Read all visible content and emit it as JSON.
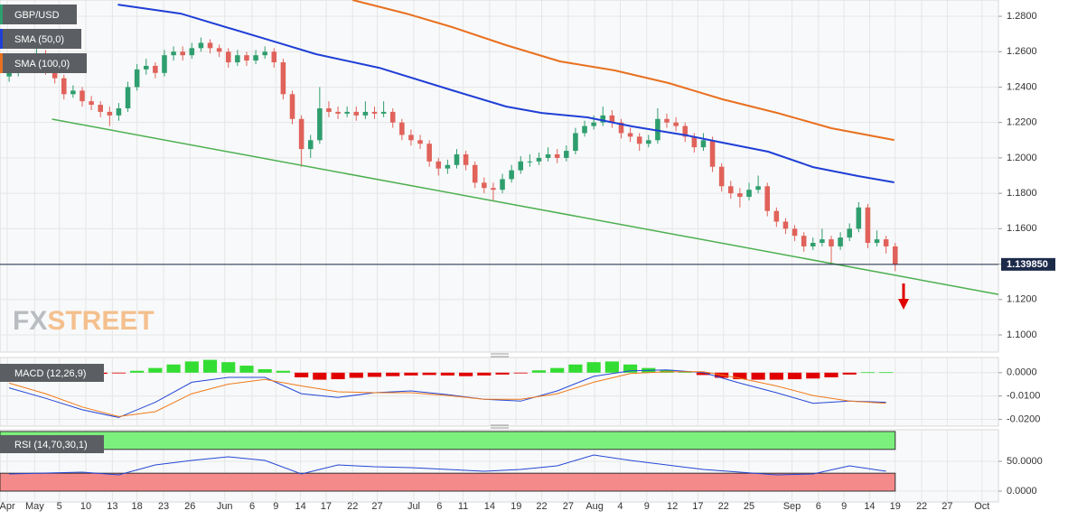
{
  "chart_data": {
    "type": "candlestick",
    "symbol": "GBP/USD",
    "watermark": [
      "FX",
      "STREET"
    ],
    "up_color": "#2f9e6e",
    "down_color": "#e0625a",
    "xlim": [
      -1,
      108.3
    ],
    "xticks": [
      {
        "value": -0.2,
        "label": "Apr"
      },
      {
        "value": 2.8,
        "label": "May"
      },
      {
        "value": 5.5,
        "label": "5"
      },
      {
        "value": 8.4,
        "label": "10"
      },
      {
        "value": 11.3,
        "label": "13"
      },
      {
        "value": 14.0,
        "label": "18"
      },
      {
        "value": 16.9,
        "label": "23"
      },
      {
        "value": 19.8,
        "label": "26"
      },
      {
        "value": 23.6,
        "label": "Jun"
      },
      {
        "value": 26.6,
        "label": "6"
      },
      {
        "value": 29.2,
        "label": "9"
      },
      {
        "value": 31.9,
        "label": "14"
      },
      {
        "value": 34.7,
        "label": "17"
      },
      {
        "value": 37.6,
        "label": "22"
      },
      {
        "value": 40.3,
        "label": "27"
      },
      {
        "value": 44.3,
        "label": "Jul"
      },
      {
        "value": 47.1,
        "label": "6"
      },
      {
        "value": 49.7,
        "label": "11"
      },
      {
        "value": 52.6,
        "label": "14"
      },
      {
        "value": 55.5,
        "label": "19"
      },
      {
        "value": 58.3,
        "label": "22"
      },
      {
        "value": 61.2,
        "label": "27"
      },
      {
        "value": 64.1,
        "label": "Aug"
      },
      {
        "value": 66.9,
        "label": "4"
      },
      {
        "value": 69.8,
        "label": "9"
      },
      {
        "value": 72.6,
        "label": "12"
      },
      {
        "value": 75.4,
        "label": "17"
      },
      {
        "value": 78.2,
        "label": "22"
      },
      {
        "value": 81.0,
        "label": "25"
      },
      {
        "value": 85.7,
        "label": "Sep"
      },
      {
        "value": 88.6,
        "label": "6"
      },
      {
        "value": 91.4,
        "label": "9"
      },
      {
        "value": 94.2,
        "label": "14"
      },
      {
        "value": 97.0,
        "label": "19"
      },
      {
        "value": 99.9,
        "label": "22"
      },
      {
        "value": 102.7,
        "label": "27"
      },
      {
        "value": 106.5,
        "label": "Oct"
      }
    ],
    "ylim": [
      1.0903,
      1.2892
    ],
    "yticks": [
      {
        "value": 1.28,
        "label": "1.2800"
      },
      {
        "value": 1.26,
        "label": "1.2600"
      },
      {
        "value": 1.24,
        "label": "1.2400"
      },
      {
        "value": 1.22,
        "label": "1.2200"
      },
      {
        "value": 1.2,
        "label": "1.2000"
      },
      {
        "value": 1.18,
        "label": "1.1800"
      },
      {
        "value": 1.16,
        "label": "1.1600"
      },
      {
        "value": 1.14,
        "label": "1.1400"
      },
      {
        "value": 1.12,
        "label": "1.1200"
      },
      {
        "value": 1.1,
        "label": "1.1000"
      }
    ],
    "grid": true,
    "candles": [
      [
        1.246,
        1.251,
        1.243,
        1.248
      ],
      [
        1.248,
        1.255,
        1.246,
        1.252
      ],
      [
        1.252,
        1.258,
        1.25,
        1.255
      ],
      [
        1.255,
        1.262,
        1.253,
        1.258
      ],
      [
        1.258,
        1.261,
        1.247,
        1.25
      ],
      [
        1.25,
        1.253,
        1.242,
        1.245
      ],
      [
        1.245,
        1.247,
        1.233,
        1.236
      ],
      [
        1.236,
        1.241,
        1.234,
        1.238
      ],
      [
        1.238,
        1.24,
        1.229,
        1.232
      ],
      [
        1.232,
        1.235,
        1.227,
        1.23
      ],
      [
        1.23,
        1.232,
        1.223,
        1.226
      ],
      [
        1.226,
        1.229,
        1.218,
        1.224
      ],
      [
        1.224,
        1.231,
        1.221,
        1.228
      ],
      [
        1.228,
        1.243,
        1.226,
        1.24
      ],
      [
        1.24,
        1.253,
        1.238,
        1.25
      ],
      [
        1.25,
        1.256,
        1.247,
        1.252
      ],
      [
        1.252,
        1.254,
        1.245,
        1.248
      ],
      [
        1.248,
        1.261,
        1.246,
        1.258
      ],
      [
        1.258,
        1.263,
        1.255,
        1.26
      ],
      [
        1.26,
        1.263,
        1.255,
        1.258
      ],
      [
        1.258,
        1.265,
        1.256,
        1.262
      ],
      [
        1.262,
        1.268,
        1.26,
        1.265
      ],
      [
        1.265,
        1.267,
        1.259,
        1.262
      ],
      [
        1.262,
        1.264,
        1.257,
        1.26
      ],
      [
        1.26,
        1.262,
        1.251,
        1.254
      ],
      [
        1.254,
        1.261,
        1.252,
        1.258
      ],
      [
        1.258,
        1.26,
        1.252,
        1.255
      ],
      [
        1.255,
        1.261,
        1.253,
        1.258
      ],
      [
        1.258,
        1.263,
        1.256,
        1.26
      ],
      [
        1.26,
        1.262,
        1.251,
        1.254
      ],
      [
        1.254,
        1.256,
        1.233,
        1.236
      ],
      [
        1.236,
        1.238,
        1.219,
        1.222
      ],
      [
        1.222,
        1.224,
        1.195,
        1.205
      ],
      [
        1.205,
        1.213,
        1.2,
        1.21
      ],
      [
        1.21,
        1.24,
        1.208,
        1.228
      ],
      [
        1.228,
        1.232,
        1.223,
        1.226
      ],
      [
        1.226,
        1.229,
        1.222,
        1.225
      ],
      [
        1.225,
        1.229,
        1.223,
        1.226
      ],
      [
        1.226,
        1.229,
        1.221,
        1.224
      ],
      [
        1.224,
        1.232,
        1.222,
        1.226
      ],
      [
        1.226,
        1.229,
        1.222,
        1.225
      ],
      [
        1.225,
        1.232,
        1.223,
        1.226
      ],
      [
        1.226,
        1.228,
        1.217,
        1.22
      ],
      [
        1.22,
        1.222,
        1.21,
        1.213
      ],
      [
        1.213,
        1.216,
        1.207,
        1.21
      ],
      [
        1.21,
        1.213,
        1.205,
        1.208
      ],
      [
        1.208,
        1.21,
        1.195,
        1.198
      ],
      [
        1.198,
        1.2,
        1.19,
        1.194
      ],
      [
        1.194,
        1.199,
        1.191,
        1.196
      ],
      [
        1.196,
        1.205,
        1.194,
        1.202
      ],
      [
        1.202,
        1.204,
        1.193,
        1.196
      ],
      [
        1.196,
        1.198,
        1.183,
        1.186
      ],
      [
        1.186,
        1.189,
        1.18,
        1.183
      ],
      [
        1.183,
        1.186,
        1.176,
        1.182
      ],
      [
        1.182,
        1.191,
        1.18,
        1.188
      ],
      [
        1.188,
        1.196,
        1.186,
        1.193
      ],
      [
        1.193,
        1.201,
        1.191,
        1.198
      ],
      [
        1.198,
        1.202,
        1.195,
        1.198
      ],
      [
        1.198,
        1.203,
        1.196,
        1.2
      ],
      [
        1.2,
        1.206,
        1.198,
        1.202
      ],
      [
        1.202,
        1.205,
        1.197,
        1.2
      ],
      [
        1.2,
        1.207,
        1.198,
        1.204
      ],
      [
        1.204,
        1.217,
        1.202,
        1.214
      ],
      [
        1.214,
        1.221,
        1.212,
        1.218
      ],
      [
        1.218,
        1.224,
        1.216,
        1.22
      ],
      [
        1.22,
        1.229,
        1.218,
        1.224
      ],
      [
        1.224,
        1.227,
        1.217,
        1.22
      ],
      [
        1.22,
        1.222,
        1.211,
        1.214
      ],
      [
        1.214,
        1.217,
        1.209,
        1.212
      ],
      [
        1.212,
        1.214,
        1.204,
        1.208
      ],
      [
        1.208,
        1.213,
        1.206,
        1.21
      ],
      [
        1.21,
        1.228,
        1.208,
        1.222
      ],
      [
        1.222,
        1.225,
        1.217,
        1.22
      ],
      [
        1.22,
        1.223,
        1.215,
        1.218
      ],
      [
        1.218,
        1.22,
        1.209,
        1.212
      ],
      [
        1.212,
        1.214,
        1.203,
        1.206
      ],
      [
        1.206,
        1.214,
        1.204,
        1.21
      ],
      [
        1.21,
        1.212,
        1.192,
        1.195
      ],
      [
        1.195,
        1.197,
        1.181,
        1.184
      ],
      [
        1.184,
        1.187,
        1.177,
        1.18
      ],
      [
        1.18,
        1.183,
        1.172,
        1.178
      ],
      [
        1.178,
        1.186,
        1.176,
        1.182
      ],
      [
        1.182,
        1.19,
        1.18,
        1.184
      ],
      [
        1.184,
        1.186,
        1.167,
        1.17
      ],
      [
        1.17,
        1.172,
        1.161,
        1.164
      ],
      [
        1.164,
        1.166,
        1.157,
        1.16
      ],
      [
        1.16,
        1.162,
        1.153,
        1.156
      ],
      [
        1.156,
        1.158,
        1.147,
        1.15
      ],
      [
        1.15,
        1.155,
        1.148,
        1.152
      ],
      [
        1.152,
        1.16,
        1.15,
        1.154
      ],
      [
        1.154,
        1.156,
        1.14,
        1.15
      ],
      [
        1.15,
        1.158,
        1.148,
        1.155
      ],
      [
        1.155,
        1.163,
        1.153,
        1.16
      ],
      [
        1.16,
        1.175,
        1.158,
        1.172
      ],
      [
        1.172,
        1.174,
        1.149,
        1.152
      ],
      [
        1.152,
        1.159,
        1.15,
        1.154
      ],
      [
        1.154,
        1.156,
        1.146,
        1.15
      ],
      [
        1.15,
        1.152,
        1.136,
        1.1398
      ]
    ],
    "sma": [
      {
        "name": "SMA (50,0)",
        "color": "#1f3fd6",
        "x": [
          11.9,
          18.8,
          28.7,
          33.6,
          40.5,
          48.5,
          54.4,
          58.3,
          63.3,
          68.2,
          74.2,
          78.1,
          83.1,
          88.0,
          93.0,
          96.9
        ],
        "values": [
          1.2866,
          1.2815,
          1.2662,
          1.2586,
          1.2509,
          1.2382,
          1.229,
          1.2254,
          1.2229,
          1.2178,
          1.2127,
          1.2086,
          1.2035,
          1.1948,
          1.1897,
          1.1862
        ]
      },
      {
        "name": "SMA (100,0)",
        "color": "#e8701f",
        "x": [
          37.6,
          43.5,
          48.5,
          54.4,
          60.3,
          66.3,
          72.2,
          78.1,
          84.1,
          90.0,
          96.9
        ],
        "values": [
          1.2892,
          1.2815,
          1.2739,
          1.2637,
          1.2545,
          1.2494,
          1.2423,
          1.2331,
          1.2254,
          1.2168,
          1.2101
        ]
      }
    ],
    "trendline": {
      "color": "#4caf50",
      "x": [
        4.7,
        108.3
      ],
      "values": [
        1.2219,
        1.1229
      ]
    },
    "price_line": {
      "value": 1.13985,
      "label": "1.139850"
    },
    "macd": {
      "title": "MACD (12,26,9)",
      "ylim": [
        -0.0229,
        0.0065
      ],
      "yticks": [
        {
          "value": 0,
          "label": "0.0000"
        },
        {
          "value": -0.01,
          "label": "-0.0100"
        },
        {
          "value": -0.02,
          "label": "-0.0200"
        }
      ],
      "pos_color": "#33dd33",
      "neg_color": "#e00000",
      "macd_color": "#2447d6",
      "signal_color": "#f07a1a",
      "hist_x": [
        0,
        2,
        4,
        6,
        8,
        10,
        12,
        14,
        16,
        18,
        20,
        22,
        24,
        26,
        28,
        30,
        32,
        34,
        36,
        38,
        40,
        42,
        44,
        46,
        48,
        50,
        52,
        54,
        56,
        58,
        60,
        62,
        64,
        66,
        68,
        70,
        72,
        74,
        76,
        78,
        80,
        82,
        84,
        86,
        88,
        90,
        92,
        94,
        96
      ],
      "hist": [
        -0.002,
        -0.002,
        -0.0018,
        -0.001,
        -0.0008,
        -0.0005,
        -0.0003,
        0.0008,
        0.002,
        0.0035,
        0.0048,
        0.0055,
        0.0045,
        0.003,
        0.0015,
        0.0008,
        -0.002,
        -0.003,
        -0.0028,
        -0.0022,
        -0.0018,
        -0.0015,
        -0.0012,
        -0.001,
        -0.0012,
        -0.0015,
        -0.0012,
        -0.0008,
        -0.0003,
        0.001,
        0.002,
        0.0035,
        0.0045,
        0.0048,
        0.0035,
        0.002,
        0.0012,
        0.0005,
        -0.001,
        -0.0022,
        -0.0028,
        -0.003,
        -0.003,
        -0.0028,
        -0.0025,
        -0.002,
        -0.0008,
        0.0002,
        0.0002
      ],
      "x": [
        0,
        4,
        8,
        12,
        16,
        20,
        24,
        28,
        32,
        36,
        40,
        44,
        48,
        52,
        56,
        60,
        64,
        68,
        72,
        76,
        80,
        84,
        88,
        92,
        96
      ],
      "macd": [
        -0.0065,
        -0.011,
        -0.0159,
        -0.0192,
        -0.0127,
        -0.0041,
        -0.002,
        -0.002,
        -0.009,
        -0.0106,
        -0.0086,
        -0.0078,
        -0.0094,
        -0.0114,
        -0.0122,
        -0.0078,
        -0.0016,
        0.0008,
        0.0012,
        0,
        -0.0045,
        -0.0086,
        -0.0131,
        -0.0122,
        -0.0127
      ],
      "signal": [
        -0.0045,
        -0.009,
        -0.0147,
        -0.0188,
        -0.0167,
        -0.009,
        -0.0049,
        -0.0029,
        -0.0057,
        -0.0082,
        -0.0086,
        -0.0086,
        -0.0098,
        -0.0114,
        -0.0114,
        -0.009,
        -0.0041,
        -0.0004,
        0.0004,
        0.0004,
        -0.0024,
        -0.0057,
        -0.0098,
        -0.0122,
        -0.0131
      ]
    },
    "rsi": {
      "title": "RSI (14,70,30,1)",
      "ylim": [
        -18.2,
        103
      ],
      "yticks": [
        {
          "value": 50,
          "label": "50.0000"
        },
        {
          "value": 0,
          "label": "0.0000"
        }
      ],
      "overbought": 70,
      "oversold": 30,
      "band_end": 97,
      "line_color": "#2447d6",
      "x": [
        0,
        4,
        8,
        12,
        16,
        20,
        24,
        28,
        32,
        36,
        40,
        44,
        48,
        52,
        56,
        60,
        64,
        68,
        72,
        76,
        80,
        84,
        88,
        92,
        96
      ],
      "values": [
        28.8,
        30.3,
        31.8,
        27.3,
        43.9,
        51.5,
        57.6,
        51.5,
        28.8,
        43.9,
        40.9,
        39.4,
        36.4,
        33.3,
        36.4,
        42.4,
        60.6,
        51.5,
        43.9,
        36.4,
        31.8,
        27.3,
        28.8,
        42.4,
        33.3
      ]
    }
  }
}
